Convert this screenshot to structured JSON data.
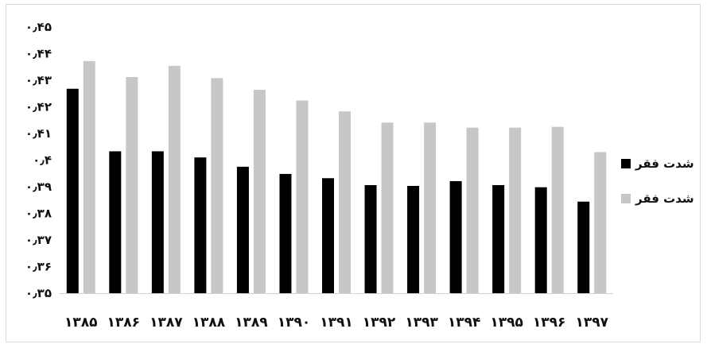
{
  "chart_data": {
    "type": "bar",
    "title": "",
    "xlabel": "",
    "ylabel": "",
    "categories": [
      "۱۳۸۵",
      "۱۳۸۶",
      "۱۳۸۷",
      "۱۳۸۸",
      "۱۳۸۹",
      "۱۳۹۰",
      "۱۳۹۱",
      "۱۳۹۲",
      "۱۳۹۳",
      "۱۳۹۴",
      "۱۳۹۵",
      "۱۳۹۶",
      "۱۳۹۷"
    ],
    "ylim": [
      0.35,
      0.45
    ],
    "yticks": [
      0.35,
      0.36,
      0.37,
      0.38,
      0.39,
      0.4,
      0.41,
      0.42,
      0.43,
      0.44,
      0.45
    ],
    "ytick_labels": [
      "۰٫۳۵",
      "۰٫۳۶",
      "۰٫۳۷",
      "۰٫۳۸",
      "۰٫۳۹",
      "۰٫۴",
      "۰٫۴۱",
      "۰٫۴۲",
      "۰٫۴۳",
      "۰٫۴۴",
      "۰٫۴۵"
    ],
    "grid": false,
    "legend_position": "right",
    "series": [
      {
        "name": "شدت فقر",
        "color": "#000000",
        "values": [
          0.4268,
          0.4033,
          0.4033,
          0.401,
          0.3975,
          0.3948,
          0.3932,
          0.3906,
          0.3903,
          0.3921,
          0.3906,
          0.3898,
          0.3844
        ]
      },
      {
        "name": "شدت فقر",
        "color": "#c7c7c7",
        "values": [
          0.4372,
          0.4312,
          0.4354,
          0.4308,
          0.4264,
          0.4224,
          0.4183,
          0.4141,
          0.4141,
          0.4122,
          0.4122,
          0.4125,
          0.403
        ]
      }
    ]
  }
}
